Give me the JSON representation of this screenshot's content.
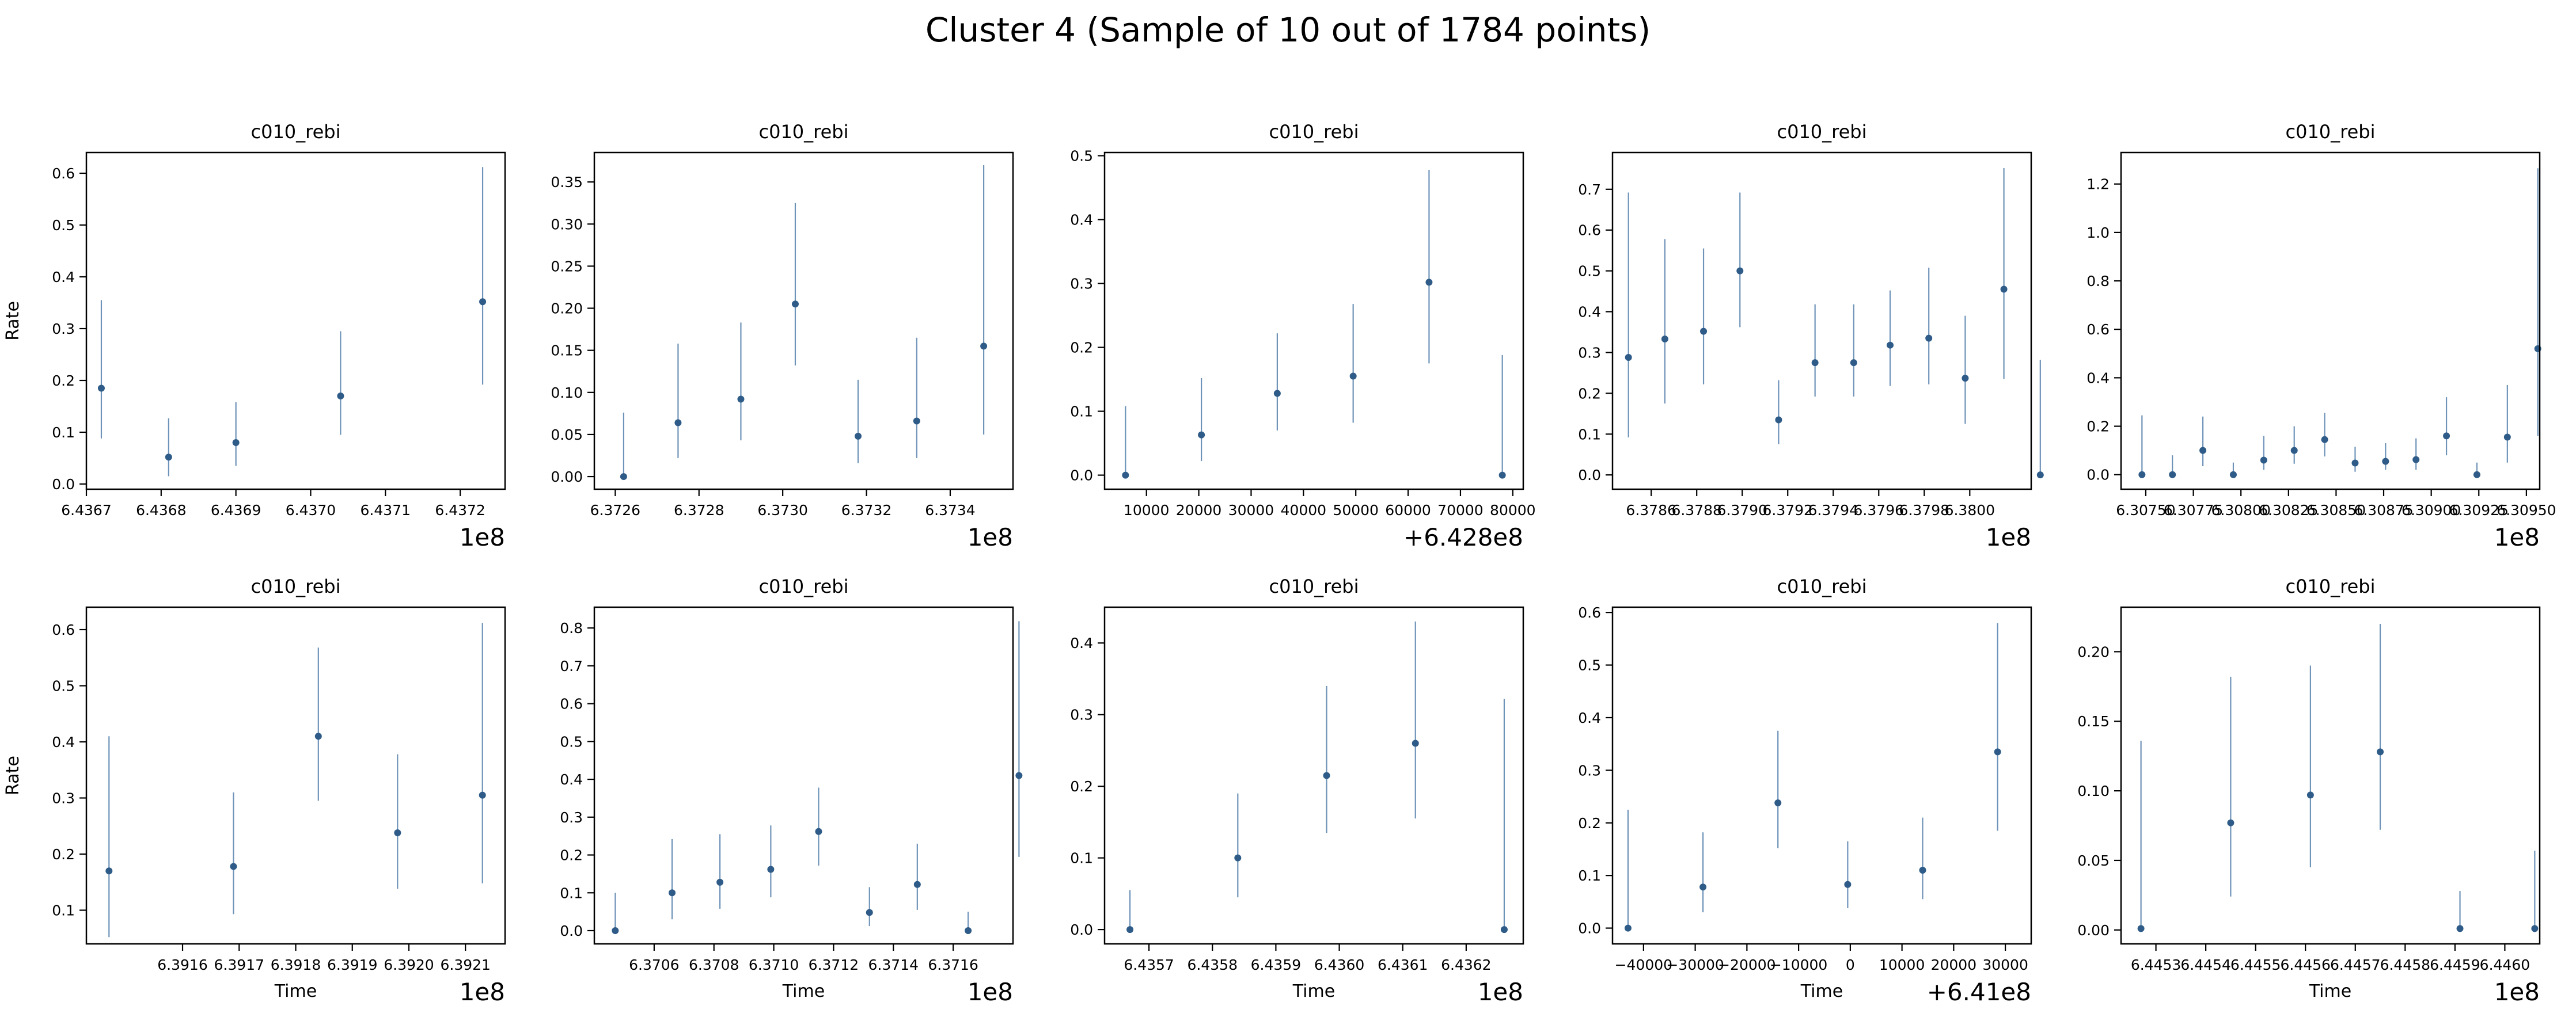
{
  "figure": {
    "title": "Cluster 4 (Sample of 10 out of 1784 points)"
  },
  "colors": {
    "point": "#2e5b87",
    "errorbar": "#6e93b8",
    "axes": "#000000"
  },
  "chart_data": [
    {
      "type": "scatter",
      "title": "c010_rebi",
      "xlabel": "",
      "ylabel": "Rate",
      "x_offset_label": "1e8",
      "xlim": [
        643670000,
        643726000
      ],
      "ylim": [
        -0.01,
        0.64
      ],
      "xticks": [
        643670000,
        643680000,
        643690000,
        643700000,
        643710000,
        643720000
      ],
      "xtick_labels": [
        "6.4367",
        "6.4368",
        "6.4369",
        "6.4370",
        "6.4371",
        "6.4372"
      ],
      "yticks": [
        0,
        0.1,
        0.2,
        0.3,
        0.4,
        0.5,
        0.6
      ],
      "ytick_labels": [
        "0.0",
        "0.1",
        "0.2",
        "0.3",
        "0.4",
        "0.5",
        "0.6"
      ],
      "x": [
        643672000,
        643681000,
        643690000,
        643704000,
        643723000
      ],
      "y": [
        0.185,
        0.052,
        0.08,
        0.17,
        0.352
      ],
      "lower": [
        0.088,
        0.015,
        0.035,
        0.095,
        0.192
      ],
      "upper": [
        0.355,
        0.127,
        0.158,
        0.295,
        0.612
      ]
    },
    {
      "type": "scatter",
      "title": "c010_rebi",
      "xlabel": "",
      "ylabel": "",
      "x_offset_label": "1e8",
      "xlim": [
        637255000,
        637355000
      ],
      "ylim": [
        -0.015,
        0.385
      ],
      "xticks": [
        637260000,
        637280000,
        637300000,
        637320000,
        637340000
      ],
      "xtick_labels": [
        "6.3726",
        "6.3728",
        "6.3730",
        "6.3732",
        "6.3734"
      ],
      "yticks": [
        0,
        0.05,
        0.1,
        0.15,
        0.2,
        0.25,
        0.3,
        0.35
      ],
      "ytick_labels": [
        "0.00",
        "0.05",
        "0.10",
        "0.15",
        "0.20",
        "0.25",
        "0.30",
        "0.35"
      ],
      "x": [
        637262000,
        637275000,
        637290000,
        637303000,
        637318000,
        637332000,
        637348000
      ],
      "y": [
        0.0,
        0.064,
        0.092,
        0.205,
        0.048,
        0.066,
        0.155
      ],
      "lower": [
        0.0,
        0.022,
        0.043,
        0.132,
        0.016,
        0.022,
        0.05
      ],
      "upper": [
        0.076,
        0.158,
        0.183,
        0.325,
        0.115,
        0.165,
        0.37
      ]
    },
    {
      "type": "scatter",
      "title": "c010_rebi",
      "xlabel": "",
      "ylabel": "",
      "x_offset_label": "+6.428e8",
      "xlim": [
        2000,
        82000
      ],
      "ylim": [
        -0.022,
        0.505
      ],
      "xticks": [
        10000,
        20000,
        30000,
        40000,
        50000,
        60000,
        70000,
        80000
      ],
      "xtick_labels": [
        "10000",
        "20000",
        "30000",
        "40000",
        "50000",
        "60000",
        "70000",
        "80000"
      ],
      "yticks": [
        0,
        0.1,
        0.2,
        0.3,
        0.4,
        0.5
      ],
      "ytick_labels": [
        "0.0",
        "0.1",
        "0.2",
        "0.3",
        "0.4",
        "0.5"
      ],
      "x": [
        6000,
        20500,
        35000,
        49500,
        64000,
        78000
      ],
      "y": [
        0.0,
        0.063,
        0.128,
        0.155,
        0.302,
        0.0
      ],
      "lower": [
        0.0,
        0.022,
        0.07,
        0.082,
        0.175,
        0.0
      ],
      "upper": [
        0.108,
        0.152,
        0.222,
        0.268,
        0.478,
        0.188
      ]
    },
    {
      "type": "scatter",
      "title": "c010_rebi",
      "xlabel": "",
      "ylabel": "",
      "x_offset_label": "1e8",
      "xlim": [
        637843000,
        638027000
      ],
      "ylim": [
        -0.035,
        0.79
      ],
      "xticks": [
        637860000,
        637880000,
        637900000,
        637920000,
        637940000,
        637960000,
        637980000,
        638000000
      ],
      "xtick_labels": [
        "6.3786",
        "6.3788",
        "6.3790",
        "6.3792",
        "6.3794",
        "6.3796",
        "6.3798",
        "6.3800"
      ],
      "yticks": [
        0,
        0.1,
        0.2,
        0.3,
        0.4,
        0.5,
        0.6,
        0.7
      ],
      "ytick_labels": [
        "0.0",
        "0.1",
        "0.2",
        "0.3",
        "0.4",
        "0.5",
        "0.6",
        "0.7"
      ],
      "x": [
        637850000,
        637866000,
        637883000,
        637899000,
        637916000,
        637932000,
        637949000,
        637965000,
        637982000,
        637998000,
        638015000,
        638031000
      ],
      "y": [
        0.288,
        0.333,
        0.352,
        0.5,
        0.135,
        0.275,
        0.275,
        0.318,
        0.335,
        0.237,
        0.455,
        0.0
      ],
      "lower": [
        0.092,
        0.175,
        0.222,
        0.362,
        0.075,
        0.192,
        0.192,
        0.218,
        0.222,
        0.125,
        0.235,
        0.0
      ],
      "upper": [
        0.692,
        0.578,
        0.555,
        0.692,
        0.232,
        0.418,
        0.418,
        0.452,
        0.508,
        0.39,
        0.752,
        0.282
      ]
    },
    {
      "type": "scatter",
      "title": "c010_rebi",
      "xlabel": "",
      "ylabel": "",
      "x_offset_label": "1e8",
      "xlim": [
        630737000,
        630957000
      ],
      "ylim": [
        -0.06,
        1.33
      ],
      "xticks": [
        630750000,
        630775000,
        630800000,
        630825000,
        630850000,
        630875000,
        630900000,
        630925000,
        630950000
      ],
      "xtick_labels": [
        "6.30750",
        "6.30775",
        "6.30800",
        "6.30825",
        "6.30850",
        "6.30875",
        "6.30900",
        "6.30925",
        "6.30950"
      ],
      "yticks": [
        0,
        0.2,
        0.4,
        0.6,
        0.8,
        1.0,
        1.2
      ],
      "ytick_labels": [
        "0.0",
        "0.2",
        "0.4",
        "0.6",
        "0.8",
        "1.0",
        "1.2"
      ],
      "x": [
        630748000,
        630764000,
        630780000,
        630796000,
        630812000,
        630828000,
        630844000,
        630860000,
        630876000,
        630892000,
        630908000,
        630924000,
        630940000,
        630956000
      ],
      "y": [
        0.0,
        0.0,
        0.1,
        0.0,
        0.06,
        0.1,
        0.145,
        0.048,
        0.055,
        0.062,
        0.16,
        0.0,
        0.155,
        0.52
      ],
      "lower": [
        0.0,
        0.0,
        0.035,
        0.0,
        0.02,
        0.045,
        0.075,
        0.012,
        0.02,
        0.02,
        0.08,
        0.0,
        0.05,
        0.16
      ],
      "upper": [
        0.245,
        0.08,
        0.24,
        0.05,
        0.16,
        0.2,
        0.255,
        0.115,
        0.13,
        0.15,
        0.32,
        0.05,
        0.37,
        1.265
      ]
    },
    {
      "type": "scatter",
      "title": "c010_rebi",
      "xlabel": "Time",
      "ylabel": "Rate",
      "x_offset_label": "1e8",
      "xlim": [
        639143000,
        639217000
      ],
      "ylim": [
        0.04,
        0.64
      ],
      "xticks": [
        639160000,
        639170000,
        639180000,
        639190000,
        639200000,
        639210000
      ],
      "xtick_labels": [
        "6.3916",
        "6.3917",
        "6.3918",
        "6.3919",
        "6.3920",
        "6.3921"
      ],
      "yticks": [
        0.1,
        0.2,
        0.3,
        0.4,
        0.5,
        0.6
      ],
      "ytick_labels": [
        "0.1",
        "0.2",
        "0.3",
        "0.4",
        "0.5",
        "0.6"
      ],
      "x": [
        639147000,
        639169000,
        639184000,
        639198000,
        639213000
      ],
      "y": [
        0.17,
        0.178,
        0.41,
        0.238,
        0.305
      ],
      "lower": [
        0.052,
        0.093,
        0.295,
        0.138,
        0.148
      ],
      "upper": [
        0.41,
        0.31,
        0.568,
        0.378,
        0.612
      ]
    },
    {
      "type": "scatter",
      "title": "c010_rebi",
      "xlabel": "Time",
      "ylabel": "",
      "x_offset_label": "1e8",
      "xlim": [
        637040000,
        637180000
      ],
      "ylim": [
        -0.035,
        0.855
      ],
      "xticks": [
        637060000,
        637080000,
        637100000,
        637120000,
        637140000,
        637160000
      ],
      "xtick_labels": [
        "6.3706",
        "6.3708",
        "6.3710",
        "6.3712",
        "6.3714",
        "6.3716"
      ],
      "yticks": [
        0,
        0.1,
        0.2,
        0.3,
        0.4,
        0.5,
        0.6,
        0.7,
        0.8
      ],
      "ytick_labels": [
        "0.0",
        "0.1",
        "0.2",
        "0.3",
        "0.4",
        "0.5",
        "0.6",
        "0.7",
        "0.8"
      ],
      "x": [
        637047000,
        637066000,
        637082000,
        637099000,
        637115000,
        637132000,
        637148000,
        637165000,
        637182000
      ],
      "y": [
        0.0,
        0.1,
        0.128,
        0.162,
        0.262,
        0.048,
        0.122,
        0.0,
        0.41
      ],
      "lower": [
        0.0,
        0.03,
        0.058,
        0.088,
        0.172,
        0.012,
        0.055,
        0.0,
        0.195
      ],
      "upper": [
        0.1,
        0.242,
        0.255,
        0.278,
        0.378,
        0.115,
        0.23,
        0.05,
        0.818
      ]
    },
    {
      "type": "scatter",
      "title": "c010_rebi",
      "xlabel": "Time",
      "ylabel": "",
      "x_offset_label": "1e8",
      "xlim": [
        643563000,
        643629000
      ],
      "ylim": [
        -0.02,
        0.45
      ],
      "xticks": [
        643570000,
        643580000,
        643590000,
        643600000,
        643610000,
        643620000
      ],
      "xtick_labels": [
        "6.4357",
        "6.4358",
        "6.4359",
        "6.4360",
        "6.4361",
        "6.4362"
      ],
      "yticks": [
        0,
        0.1,
        0.2,
        0.3,
        0.4
      ],
      "ytick_labels": [
        "0.0",
        "0.1",
        "0.2",
        "0.3",
        "0.4"
      ],
      "x": [
        643567000,
        643584000,
        643598000,
        643612000,
        643626000
      ],
      "y": [
        0.0,
        0.1,
        0.215,
        0.26,
        0.0
      ],
      "lower": [
        0.0,
        0.045,
        0.135,
        0.155,
        0.0
      ],
      "upper": [
        0.055,
        0.19,
        0.34,
        0.43,
        0.322
      ]
    },
    {
      "type": "scatter",
      "title": "c010_rebi",
      "xlabel": "Time",
      "ylabel": "",
      "x_offset_label": "+6.41e8",
      "xlim": [
        -46000,
        35000
      ],
      "ylim": [
        -0.03,
        0.61
      ],
      "xticks": [
        -40000,
        -30000,
        -20000,
        -10000,
        0,
        10000,
        20000,
        30000
      ],
      "xtick_labels": [
        "−40000",
        "−30000",
        "−20000",
        "−10000",
        "0",
        "10000",
        "20000",
        "30000"
      ],
      "yticks": [
        0,
        0.1,
        0.2,
        0.3,
        0.4,
        0.5,
        0.6
      ],
      "ytick_labels": [
        "0.0",
        "0.1",
        "0.2",
        "0.3",
        "0.4",
        "0.5",
        "0.6"
      ],
      "x": [
        -43000,
        -28500,
        -14000,
        -500,
        14000,
        28500
      ],
      "y": [
        0.0,
        0.078,
        0.238,
        0.083,
        0.11,
        0.335
      ],
      "lower": [
        0.0,
        0.03,
        0.152,
        0.038,
        0.055,
        0.185
      ],
      "upper": [
        0.225,
        0.182,
        0.375,
        0.165,
        0.21,
        0.58
      ]
    },
    {
      "type": "scatter",
      "title": "c010_rebi",
      "xlabel": "Time",
      "ylabel": "",
      "x_offset_label": "1e8",
      "xlim": [
        644523000,
        644607000
      ],
      "ylim": [
        -0.01,
        0.232
      ],
      "xticks": [
        644530000,
        644540000,
        644550000,
        644560000,
        644570000,
        644580000,
        644590000,
        644600000
      ],
      "xtick_labels": [
        "6.4453",
        "6.4454",
        "6.4455",
        "6.4456",
        "6.4457",
        "6.4458",
        "6.4459",
        "6.4460"
      ],
      "yticks": [
        0,
        0.05,
        0.1,
        0.15,
        0.2
      ],
      "ytick_labels": [
        "0.00",
        "0.05",
        "0.10",
        "0.15",
        "0.20"
      ],
      "x": [
        644527000,
        644545000,
        644561000,
        644575000,
        644591000,
        644606000
      ],
      "y": [
        0.001,
        0.077,
        0.097,
        0.128,
        0.001,
        0.001
      ],
      "lower": [
        0.0,
        0.024,
        0.045,
        0.072,
        0.0,
        0.0
      ],
      "upper": [
        0.136,
        0.182,
        0.19,
        0.22,
        0.028,
        0.057
      ]
    }
  ]
}
